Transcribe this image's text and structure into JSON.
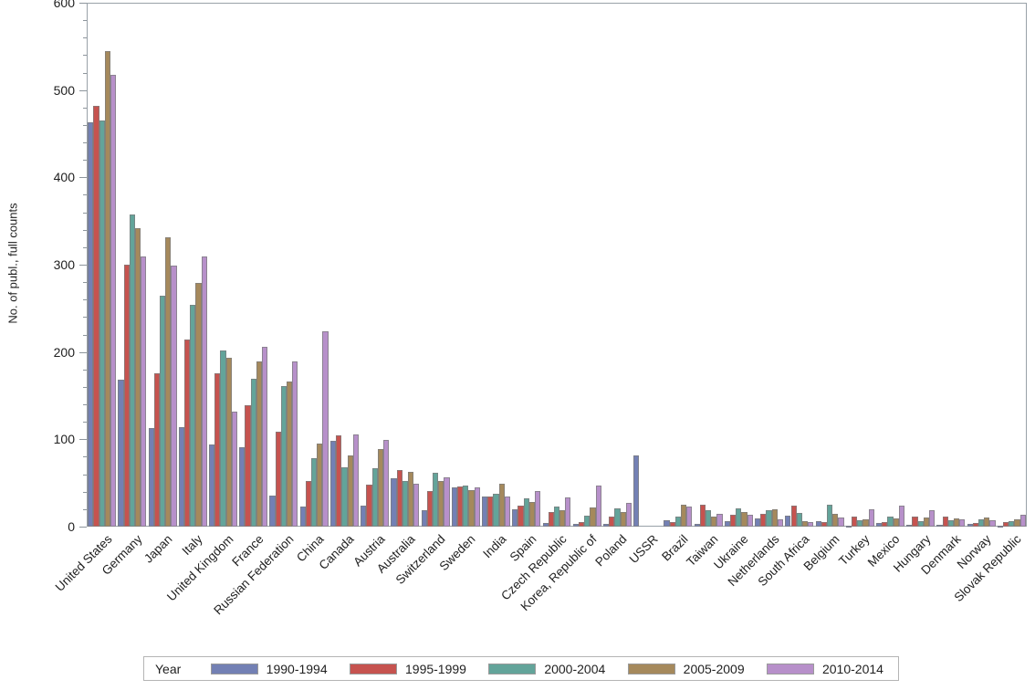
{
  "chart_data": {
    "type": "bar",
    "title": "",
    "xlabel": "",
    "ylabel": "No. of publ., full counts",
    "ylim": [
      0,
      600
    ],
    "y_major_tick": 100,
    "y_minor_tick": 20,
    "grid": "off",
    "legend_position": "bottom",
    "legend_title": "Year",
    "categories": [
      "United States",
      "Germany",
      "Japan",
      "Italy",
      "United Kingdom",
      "France",
      "Russian Federation",
      "China",
      "Canada",
      "Austria",
      "Australia",
      "Switzerland",
      "Sweden",
      "India",
      "Spain",
      "Czech Republic",
      "Korea, Republic of",
      "Poland",
      "USSR",
      "Brazil",
      "Taiwan",
      "Ukraine",
      "Netherlands",
      "South Africa",
      "Belgium",
      "Turkey",
      "Mexico",
      "Hungary",
      "Denmark",
      "Norway",
      "Slovak Republic"
    ],
    "series": [
      {
        "name": "1990-1994",
        "color": "#7380b4",
        "values": [
          463,
          168,
          113,
          114,
          94,
          91,
          36,
          23,
          98,
          24,
          55,
          19,
          45,
          34,
          20,
          4,
          3,
          3,
          82,
          7,
          3,
          6,
          9,
          13,
          6,
          1,
          4,
          2,
          2,
          3,
          1
        ]
      },
      {
        "name": "1995-1999",
        "color": "#c6534f",
        "values": [
          482,
          300,
          176,
          214,
          176,
          139,
          109,
          52,
          105,
          48,
          65,
          41,
          46,
          34,
          24,
          17,
          5,
          11,
          0,
          5,
          25,
          14,
          15,
          24,
          5,
          11,
          5,
          11,
          12,
          4,
          5
        ]
      },
      {
        "name": "2000-2004",
        "color": "#63a49a",
        "values": [
          465,
          357,
          264,
          254,
          202,
          169,
          161,
          78,
          68,
          67,
          52,
          62,
          47,
          38,
          32,
          23,
          13,
          21,
          0,
          11,
          19,
          21,
          19,
          16,
          25,
          7,
          11,
          6,
          7,
          8,
          6
        ]
      },
      {
        "name": "2005-2009",
        "color": "#a5895c",
        "values": [
          545,
          342,
          331,
          279,
          193,
          189,
          166,
          95,
          82,
          89,
          63,
          52,
          42,
          49,
          28,
          19,
          22,
          17,
          0,
          25,
          12,
          17,
          20,
          6,
          15,
          8,
          9,
          10,
          9,
          10,
          8
        ]
      },
      {
        "name": "2010-2014",
        "color": "#b790ca",
        "values": [
          517,
          309,
          299,
          309,
          132,
          206,
          189,
          224,
          106,
          99,
          49,
          56,
          45,
          35,
          41,
          33,
          47,
          27,
          0,
          23,
          15,
          14,
          8,
          5,
          10,
          20,
          24,
          19,
          8,
          7,
          14
        ]
      }
    ]
  },
  "colors": {
    "frame": "#99a1a8",
    "text": "#1f1f1f",
    "legend_border": "#b4b4b4"
  }
}
